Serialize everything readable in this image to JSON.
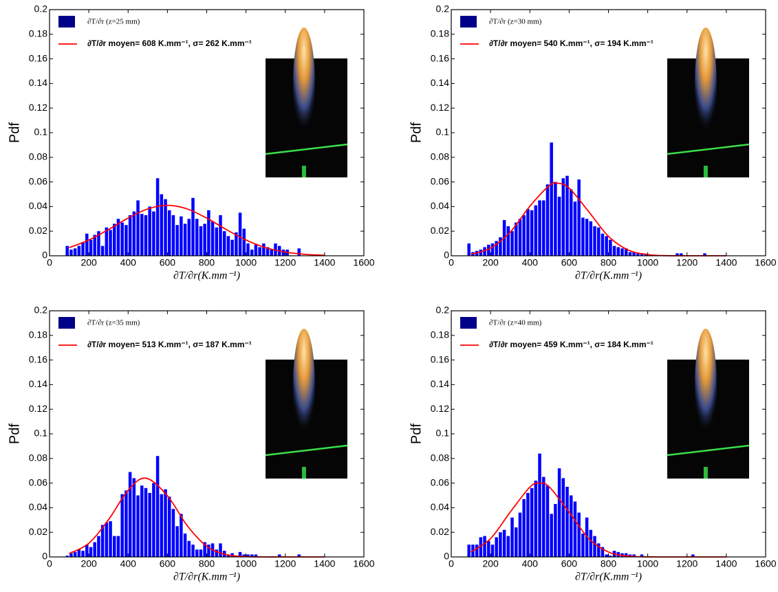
{
  "chart_data": [
    {
      "type": "histogram",
      "name": "∂T/∂r (z=25 mm)",
      "color": "#0000ff",
      "xlabel": "∂T/∂r(K.mm⁻¹)",
      "ylabel": "Pdf",
      "xlim": [
        0,
        1600
      ],
      "ylim": [
        0,
        0.2
      ],
      "xticks": [
        0,
        200,
        400,
        600,
        800,
        1000,
        1200,
        1400,
        1600
      ],
      "yticks": [
        0,
        0.02,
        0.04,
        0.06,
        0.08,
        0.1,
        0.12,
        0.14,
        0.16,
        0.18,
        0.2
      ],
      "bins": [
        80,
        100,
        120,
        140,
        160,
        180,
        200,
        220,
        240,
        260,
        280,
        300,
        320,
        340,
        360,
        380,
        400,
        420,
        440,
        460,
        480,
        500,
        520,
        540,
        560,
        580,
        600,
        620,
        640,
        660,
        680,
        700,
        720,
        740,
        760,
        780,
        800,
        820,
        840,
        860,
        880,
        900,
        920,
        940,
        960,
        980,
        1000,
        1020,
        1040,
        1060,
        1080,
        1100,
        1120,
        1140,
        1160,
        1180,
        1200,
        1220,
        1240,
        1260,
        1280,
        1300
      ],
      "values": [
        0.008,
        0.005,
        0.006,
        0.008,
        0.011,
        0.018,
        0.013,
        0.017,
        0.02,
        0.008,
        0.023,
        0.021,
        0.026,
        0.03,
        0.027,
        0.025,
        0.033,
        0.036,
        0.045,
        0.034,
        0.033,
        0.04,
        0.036,
        0.063,
        0.05,
        0.046,
        0.037,
        0.033,
        0.025,
        0.032,
        0.026,
        0.03,
        0.047,
        0.03,
        0.024,
        0.026,
        0.037,
        0.028,
        0.023,
        0.033,
        0.02,
        0.016,
        0.013,
        0.019,
        0.035,
        0.022,
        0.01,
        0.005,
        0.009,
        0.007,
        0.01,
        0.007,
        0.005,
        0.01,
        0.008,
        0.005,
        0.005,
        0,
        0,
        0.006,
        0
      ],
      "fit": {
        "name": "∂T/∂r moyen= 608 K.mm⁻¹, σ= 262 K.mm⁻¹",
        "color": "#ff0000",
        "x": [
          100,
          200,
          300,
          400,
          500,
          600,
          700,
          800,
          900,
          1000,
          1100,
          1200,
          1300,
          1400
        ],
        "values": [
          0.0066,
          0.0128,
          0.0213,
          0.0306,
          0.0381,
          0.041,
          0.0381,
          0.0306,
          0.0213,
          0.0128,
          0.0066,
          0.003,
          0.0012,
          0.0004
        ]
      }
    },
    {
      "type": "histogram",
      "name": "∂T/∂r (z=30 mm)",
      "color": "#0000ff",
      "xlabel": "∂T/∂r(K.mm⁻¹)",
      "ylabel": "Pdf",
      "xlim": [
        0,
        1600
      ],
      "ylim": [
        0,
        0.2
      ],
      "xticks": [
        0,
        200,
        400,
        600,
        800,
        1000,
        1200,
        1400,
        1600
      ],
      "yticks": [
        0,
        0.02,
        0.04,
        0.06,
        0.08,
        0.1,
        0.12,
        0.14,
        0.16,
        0.18,
        0.2
      ],
      "bins": [
        80,
        100,
        120,
        140,
        160,
        180,
        200,
        220,
        240,
        260,
        280,
        300,
        320,
        340,
        360,
        380,
        400,
        420,
        440,
        460,
        480,
        500,
        520,
        540,
        560,
        580,
        600,
        620,
        640,
        660,
        680,
        700,
        720,
        740,
        760,
        780,
        800,
        820,
        840,
        860,
        880,
        900,
        920,
        940,
        960,
        980,
        1000,
        1020,
        1040,
        1060,
        1080,
        1100,
        1120,
        1140,
        1160,
        1180,
        1200,
        1220,
        1240,
        1260,
        1280,
        1300
      ],
      "values": [
        0.01,
        0.003,
        0.004,
        0.005,
        0.007,
        0.009,
        0.01,
        0.012,
        0.015,
        0.029,
        0.024,
        0.02,
        0.027,
        0.03,
        0.033,
        0.038,
        0.037,
        0.041,
        0.045,
        0.045,
        0.058,
        0.092,
        0.06,
        0.048,
        0.063,
        0.065,
        0.054,
        0.044,
        0.062,
        0.031,
        0.03,
        0.028,
        0.024,
        0.023,
        0.018,
        0.016,
        0.013,
        0.008,
        0.007,
        0.006,
        0.006,
        0.003,
        0.003,
        0.002,
        0.002,
        0.001,
        0,
        0,
        0,
        0,
        0,
        0,
        0,
        0.002,
        0.002,
        0,
        0,
        0,
        0,
        0,
        0.002
      ],
      "fit": {
        "name": "∂T/∂r moyen= 540 K.mm⁻¹, σ= 194 K.mm⁻¹",
        "color": "#ff0000",
        "x": [
          100,
          200,
          300,
          400,
          500,
          540,
          600,
          700,
          800,
          900,
          1000,
          1100,
          1200,
          1300,
          1400
        ],
        "values": [
          0.0013,
          0.0062,
          0.0192,
          0.0402,
          0.0572,
          0.059,
          0.055,
          0.0358,
          0.0158,
          0.0047,
          0.001,
          0.0001,
          0,
          0,
          0
        ]
      }
    },
    {
      "type": "histogram",
      "name": "∂T/∂r (z=35 mm)",
      "color": "#0000ff",
      "xlabel": "∂T/∂r(K.mm⁻¹)",
      "ylabel": "Pdf",
      "xlim": [
        0,
        1600
      ],
      "ylim": [
        0,
        0.2
      ],
      "xticks": [
        0,
        200,
        400,
        600,
        800,
        1000,
        1200,
        1400,
        1600
      ],
      "yticks": [
        0,
        0.02,
        0.04,
        0.06,
        0.08,
        0.1,
        0.12,
        0.14,
        0.16,
        0.18,
        0.2
      ],
      "bins": [
        80,
        100,
        120,
        140,
        160,
        180,
        200,
        220,
        240,
        260,
        280,
        300,
        320,
        340,
        360,
        380,
        400,
        420,
        440,
        460,
        480,
        500,
        520,
        540,
        560,
        580,
        600,
        620,
        640,
        660,
        680,
        700,
        720,
        740,
        760,
        780,
        800,
        820,
        840,
        860,
        880,
        900,
        920,
        940,
        960,
        980,
        1000,
        1020,
        1040,
        1060,
        1080,
        1100,
        1120,
        1140,
        1160,
        1180,
        1200,
        1220,
        1240,
        1260,
        1280,
        1300
      ],
      "values": [
        0.001,
        0.003,
        0.004,
        0.006,
        0.005,
        0.01,
        0.008,
        0.012,
        0.017,
        0.026,
        0.028,
        0.029,
        0.017,
        0.017,
        0.051,
        0.054,
        0.069,
        0.064,
        0.05,
        0.058,
        0.056,
        0.052,
        0.06,
        0.082,
        0.051,
        0.055,
        0.049,
        0.039,
        0.025,
        0.035,
        0.019,
        0.013,
        0.01,
        0.006,
        0.006,
        0.012,
        0.01,
        0.011,
        0.006,
        0.011,
        0.005,
        0.002,
        0.003,
        0.001,
        0.004,
        0.002,
        0.002,
        0.002,
        0.002,
        0,
        0,
        0,
        0,
        0,
        0.002,
        0,
        0,
        0,
        0,
        0.002,
        0
      ],
      "fit": {
        "name": "∂T/∂r moyen= 513 K.mm⁻¹, σ= 187 K.mm⁻¹",
        "color": "#ff0000",
        "x": [
          100,
          200,
          300,
          400,
          490,
          600,
          700,
          800,
          900,
          1000,
          1100,
          1200,
          1300,
          1400
        ],
        "values": [
          0.0027,
          0.0111,
          0.0302,
          0.0541,
          0.064,
          0.0497,
          0.0256,
          0.0087,
          0.0019,
          0.0003,
          0,
          0,
          0,
          0
        ]
      }
    },
    {
      "type": "histogram",
      "name": "∂T/∂r (z=40 mm)",
      "color": "#0000ff",
      "xlabel": "∂T/∂r(K.mm⁻¹)",
      "ylabel": "Pdf",
      "xlim": [
        0,
        1600
      ],
      "ylim": [
        0,
        0.2
      ],
      "xticks": [
        0,
        200,
        400,
        600,
        800,
        1000,
        1200,
        1400,
        1600
      ],
      "yticks": [
        0,
        0.02,
        0.04,
        0.06,
        0.08,
        0.1,
        0.12,
        0.14,
        0.16,
        0.18,
        0.2
      ],
      "bins": [
        80,
        100,
        120,
        140,
        160,
        180,
        200,
        220,
        240,
        260,
        280,
        300,
        320,
        340,
        360,
        380,
        400,
        420,
        440,
        460,
        480,
        500,
        520,
        540,
        560,
        580,
        600,
        620,
        640,
        660,
        680,
        700,
        720,
        740,
        760,
        780,
        800,
        820,
        840,
        860,
        880,
        900,
        920,
        940,
        960,
        980,
        1000,
        1020,
        1040,
        1060,
        1080,
        1100,
        1120,
        1140,
        1160,
        1180,
        1200,
        1220,
        1240,
        1260,
        1280,
        1300
      ],
      "values": [
        0.01,
        0.01,
        0.01,
        0.016,
        0.017,
        0.013,
        0.01,
        0.016,
        0.02,
        0.022,
        0.017,
        0.032,
        0.024,
        0.036,
        0.047,
        0.052,
        0.056,
        0.062,
        0.084,
        0.065,
        0.058,
        0.035,
        0.043,
        0.072,
        0.064,
        0.057,
        0.05,
        0.045,
        0.036,
        0.019,
        0.032,
        0.022,
        0.017,
        0.011,
        0.008,
        0.002,
        0.001,
        0.005,
        0.004,
        0.003,
        0.003,
        0.002,
        0.002,
        0,
        0.002,
        0,
        0,
        0,
        0,
        0,
        0,
        0,
        0,
        0,
        0,
        0,
        0,
        0.002,
        0,
        0,
        0
      ],
      "fit": {
        "name": "∂T/∂r moyen= 459 K.mm⁻¹, σ= 184 K.mm⁻¹",
        "color": "#ff0000",
        "x": [
          100,
          200,
          300,
          400,
          450,
          500,
          600,
          700,
          800,
          900,
          1000,
          1100,
          1200,
          1300,
          1400
        ],
        "values": [
          0.004,
          0.0149,
          0.0364,
          0.0567,
          0.06,
          0.0567,
          0.0364,
          0.0149,
          0.004,
          0.0007,
          0.0001,
          0,
          0,
          0,
          0
        ]
      }
    }
  ]
}
